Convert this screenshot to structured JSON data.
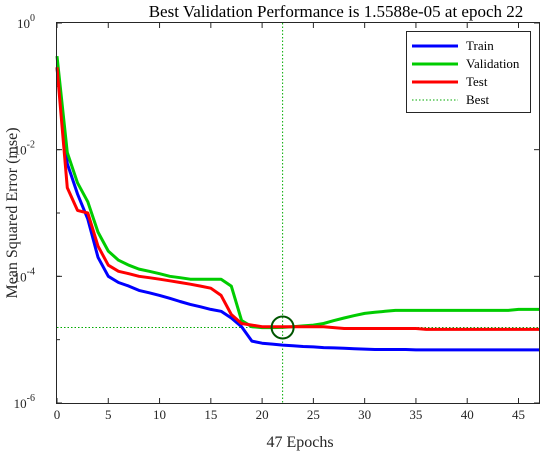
{
  "chart_data": {
    "type": "line",
    "title": "Best Validation Performance is 1.5588e-05 at epoch 22",
    "xlabel": "47 Epochs",
    "ylabel": "Mean Squared Error  (mse)",
    "yscale": "log",
    "xlim": [
      0,
      47
    ],
    "ylim": [
      1e-06,
      1
    ],
    "x_ticks": [
      0,
      5,
      10,
      15,
      20,
      25,
      30,
      35,
      40,
      45
    ],
    "y_ticks": [
      {
        "base": "10",
        "exp": "0"
      },
      {
        "base": "10",
        "exp": "-2"
      },
      {
        "base": "10",
        "exp": "-4"
      },
      {
        "base": "10",
        "exp": "-6"
      }
    ],
    "grid": false,
    "legend_position": "top-right",
    "series": [
      {
        "name": "Train",
        "color": "#0000ff",
        "points": [
          [
            0,
            0.2
          ],
          [
            1,
            0.006
          ],
          [
            2,
            0.002
          ],
          [
            3,
            0.0008
          ],
          [
            4,
            0.0002
          ],
          [
            5,
            0.0001
          ],
          [
            6,
            8e-05
          ],
          [
            7,
            7e-05
          ],
          [
            8,
            6e-05
          ],
          [
            9,
            5.5e-05
          ],
          [
            10,
            5e-05
          ],
          [
            11,
            4.5e-05
          ],
          [
            12,
            4e-05
          ],
          [
            13,
            3.6e-05
          ],
          [
            14,
            3.3e-05
          ],
          [
            15,
            3e-05
          ],
          [
            16,
            2.8e-05
          ],
          [
            17,
            2.2e-05
          ],
          [
            18,
            1.6e-05
          ],
          [
            19,
            9.5e-06
          ],
          [
            20,
            8.8e-06
          ],
          [
            21,
            8.5e-06
          ],
          [
            22,
            8.2e-06
          ],
          [
            23,
            8e-06
          ],
          [
            24,
            7.8e-06
          ],
          [
            25,
            7.7e-06
          ],
          [
            26,
            7.5e-06
          ],
          [
            27,
            7.4e-06
          ],
          [
            28,
            7.3e-06
          ],
          [
            29,
            7.2e-06
          ],
          [
            30,
            7.1e-06
          ],
          [
            31,
            7e-06
          ],
          [
            32,
            7e-06
          ],
          [
            33,
            7e-06
          ],
          [
            34,
            7e-06
          ],
          [
            35,
            6.9e-06
          ],
          [
            36,
            6.9e-06
          ],
          [
            37,
            6.9e-06
          ],
          [
            38,
            6.9e-06
          ],
          [
            39,
            6.9e-06
          ],
          [
            40,
            6.9e-06
          ],
          [
            41,
            6.9e-06
          ],
          [
            42,
            6.9e-06
          ],
          [
            43,
            6.9e-06
          ],
          [
            44,
            6.9e-06
          ],
          [
            45,
            6.9e-06
          ],
          [
            46,
            6.9e-06
          ],
          [
            47,
            6.9e-06
          ]
        ]
      },
      {
        "name": "Validation",
        "color": "#00cc00",
        "points": [
          [
            0,
            0.3
          ],
          [
            1,
            0.009
          ],
          [
            2,
            0.003
          ],
          [
            3,
            0.0015
          ],
          [
            4,
            0.0005
          ],
          [
            5,
            0.00025
          ],
          [
            6,
            0.00018
          ],
          [
            7,
            0.00015
          ],
          [
            8,
            0.00013
          ],
          [
            9,
            0.00012
          ],
          [
            10,
            0.00011
          ],
          [
            11,
            0.0001
          ],
          [
            12,
            9.5e-05
          ],
          [
            13,
            9e-05
          ],
          [
            14,
            9e-05
          ],
          [
            15,
            9e-05
          ],
          [
            16,
            9e-05
          ],
          [
            17,
            7e-05
          ],
          [
            18,
            2e-05
          ],
          [
            19,
            1.6e-05
          ],
          [
            20,
            1.55e-05
          ],
          [
            21,
            1.55e-05
          ],
          [
            22,
            1.56e-05
          ],
          [
            23,
            1.6e-05
          ],
          [
            24,
            1.65e-05
          ],
          [
            25,
            1.7e-05
          ],
          [
            26,
            1.8e-05
          ],
          [
            27,
            2e-05
          ],
          [
            28,
            2.2e-05
          ],
          [
            29,
            2.4e-05
          ],
          [
            30,
            2.6e-05
          ],
          [
            31,
            2.7e-05
          ],
          [
            32,
            2.8e-05
          ],
          [
            33,
            2.9e-05
          ],
          [
            34,
            2.9e-05
          ],
          [
            35,
            2.9e-05
          ],
          [
            36,
            2.9e-05
          ],
          [
            37,
            2.9e-05
          ],
          [
            38,
            2.9e-05
          ],
          [
            39,
            2.9e-05
          ],
          [
            40,
            2.9e-05
          ],
          [
            41,
            2.9e-05
          ],
          [
            42,
            2.9e-05
          ],
          [
            43,
            2.9e-05
          ],
          [
            44,
            2.9e-05
          ],
          [
            45,
            3e-05
          ],
          [
            46,
            3e-05
          ],
          [
            47,
            3e-05
          ]
        ]
      },
      {
        "name": "Test",
        "color": "#ff0000",
        "points": [
          [
            0,
            0.2
          ],
          [
            1,
            0.0025
          ],
          [
            2,
            0.0011
          ],
          [
            3,
            0.001
          ],
          [
            4,
            0.0003
          ],
          [
            5,
            0.00015
          ],
          [
            6,
            0.00012
          ],
          [
            7,
            0.00011
          ],
          [
            8,
            0.0001
          ],
          [
            9,
            9.5e-05
          ],
          [
            10,
            9e-05
          ],
          [
            11,
            8.5e-05
          ],
          [
            12,
            8e-05
          ],
          [
            13,
            7.5e-05
          ],
          [
            14,
            7e-05
          ],
          [
            15,
            6.5e-05
          ],
          [
            16,
            5e-05
          ],
          [
            17,
            2.5e-05
          ],
          [
            18,
            1.8e-05
          ],
          [
            19,
            1.7e-05
          ],
          [
            20,
            1.6e-05
          ],
          [
            21,
            1.6e-05
          ],
          [
            22,
            1.6e-05
          ],
          [
            23,
            1.6e-05
          ],
          [
            24,
            1.6e-05
          ],
          [
            25,
            1.6e-05
          ],
          [
            26,
            1.6e-05
          ],
          [
            27,
            1.55e-05
          ],
          [
            28,
            1.5e-05
          ],
          [
            29,
            1.5e-05
          ],
          [
            30,
            1.5e-05
          ],
          [
            31,
            1.5e-05
          ],
          [
            32,
            1.5e-05
          ],
          [
            33,
            1.5e-05
          ],
          [
            34,
            1.5e-05
          ],
          [
            35,
            1.5e-05
          ],
          [
            36,
            1.45e-05
          ],
          [
            37,
            1.45e-05
          ],
          [
            38,
            1.45e-05
          ],
          [
            39,
            1.45e-05
          ],
          [
            40,
            1.45e-05
          ],
          [
            41,
            1.45e-05
          ],
          [
            42,
            1.45e-05
          ],
          [
            43,
            1.45e-05
          ],
          [
            44,
            1.45e-05
          ],
          [
            45,
            1.45e-05
          ],
          [
            46,
            1.45e-05
          ],
          [
            47,
            1.45e-05
          ]
        ]
      }
    ],
    "best": {
      "name": "Best",
      "epoch": 22,
      "value": 1.5588e-05,
      "color": "#00aa00"
    }
  }
}
